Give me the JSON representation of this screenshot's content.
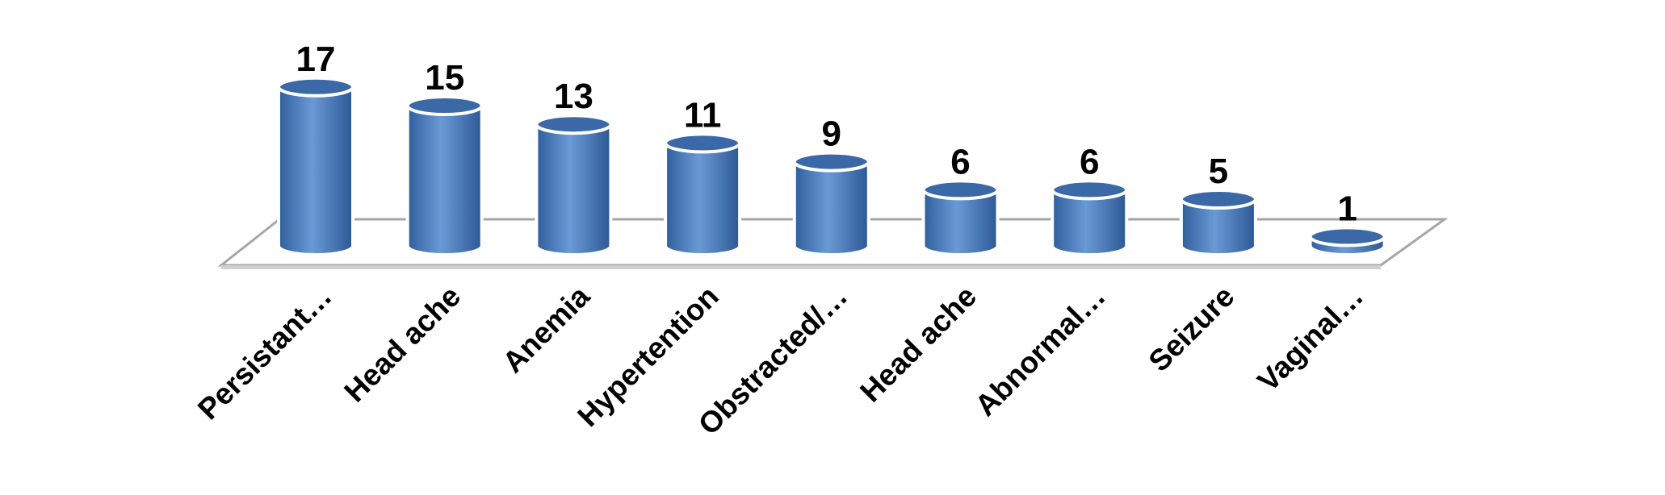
{
  "chart_data": {
    "type": "bar",
    "categories": [
      "Persistant…",
      "Head ache",
      "Anemia",
      "Hypertention",
      "Obstracted/…",
      "Head ache",
      "Abnormal…",
      "Seizure",
      "Vaginal…"
    ],
    "values": [
      17,
      15,
      13,
      11,
      9,
      6,
      6,
      5,
      1
    ],
    "color": "#4f81bd"
  }
}
